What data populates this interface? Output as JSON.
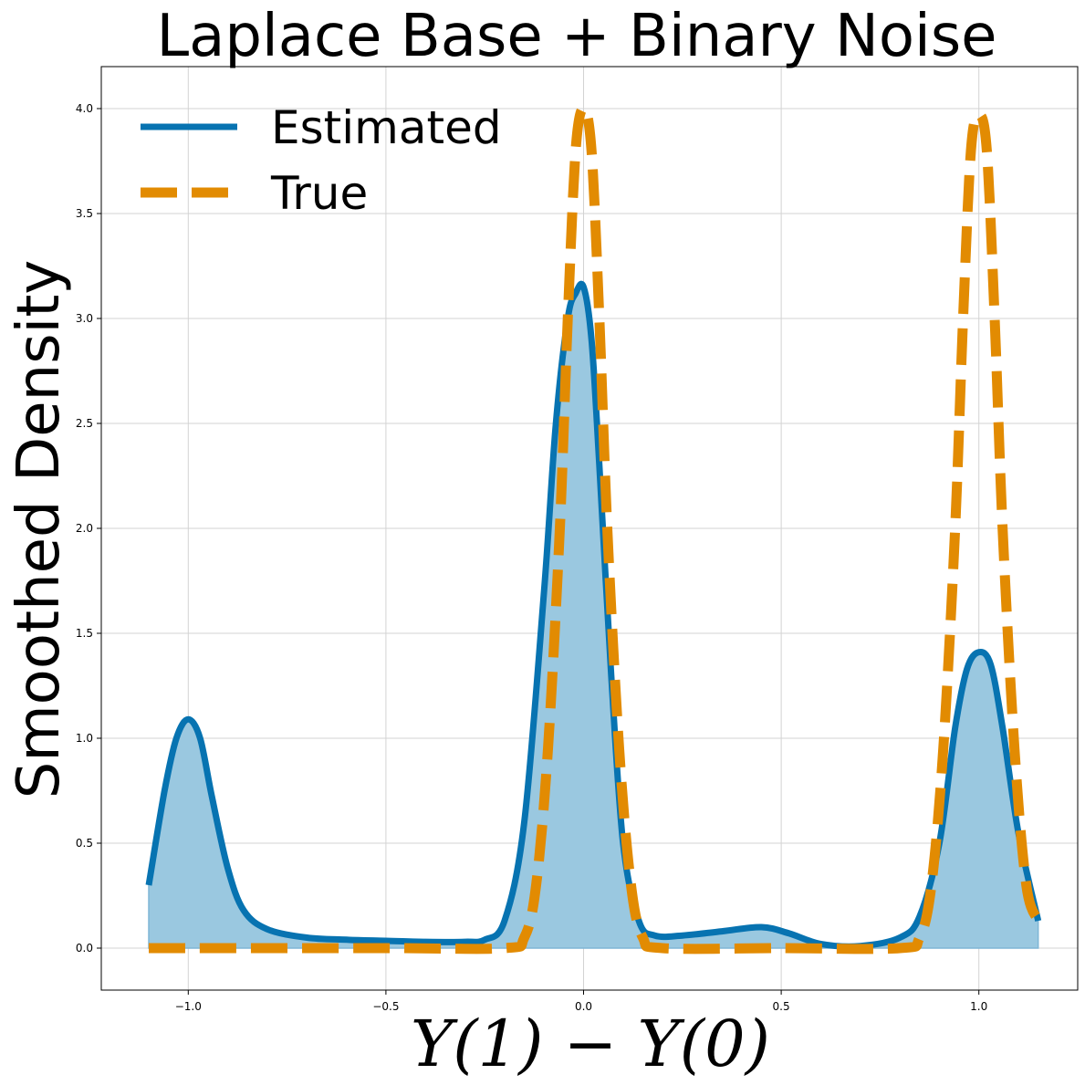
{
  "chart_data": {
    "type": "line",
    "title": "Laplace Base + Binary Noise",
    "xlabel": "Y(1) − Y(0)",
    "ylabel": "Smoothed Density",
    "xlim": [
      -1.22,
      1.25
    ],
    "ylim": [
      -0.2,
      4.2
    ],
    "grid": true,
    "legend_position": "top-left",
    "x_ticks": [
      -1.0,
      -0.5,
      0.0,
      0.5,
      1.0
    ],
    "x_tick_labels": [
      "−1.0",
      "−0.5",
      "0.0",
      "0.5",
      "1.0"
    ],
    "y_ticks": [
      0.0,
      0.5,
      1.0,
      1.5,
      2.0,
      2.5,
      3.0,
      3.5,
      4.0
    ],
    "y_tick_labels": [
      "0.0",
      "0.5",
      "1.0",
      "1.5",
      "2.0",
      "2.5",
      "3.0",
      "3.5",
      "4.0"
    ],
    "series": [
      {
        "name": "Estimated",
        "style": "solid",
        "color": "#0773b1",
        "fill_color": "#9ac8e0",
        "x": [
          -1.1,
          -1.06,
          -1.03,
          -1.0,
          -0.97,
          -0.94,
          -0.9,
          -0.86,
          -0.8,
          -0.7,
          -0.6,
          -0.5,
          -0.4,
          -0.3,
          -0.25,
          -0.2,
          -0.15,
          -0.1,
          -0.07,
          -0.04,
          -0.02,
          0.0,
          0.02,
          0.04,
          0.07,
          0.1,
          0.14,
          0.18,
          0.25,
          0.35,
          0.45,
          0.52,
          0.6,
          0.7,
          0.8,
          0.85,
          0.9,
          0.94,
          0.97,
          1.0,
          1.03,
          1.06,
          1.1,
          1.15
        ],
        "y": [
          0.3,
          0.75,
          1.0,
          1.09,
          1.0,
          0.72,
          0.38,
          0.18,
          0.09,
          0.05,
          0.04,
          0.035,
          0.03,
          0.03,
          0.04,
          0.13,
          0.6,
          1.7,
          2.5,
          3.0,
          3.12,
          3.15,
          2.9,
          2.3,
          1.3,
          0.5,
          0.13,
          0.06,
          0.06,
          0.08,
          0.1,
          0.07,
          0.02,
          0.01,
          0.05,
          0.15,
          0.5,
          1.05,
          1.33,
          1.41,
          1.35,
          1.05,
          0.55,
          0.13
        ]
      },
      {
        "name": "True",
        "style": "dashed",
        "color": "#e28b02",
        "x": [
          -1.1,
          -0.5,
          -0.2,
          -0.15,
          -0.12,
          -0.09,
          -0.06,
          -0.04,
          -0.02,
          0.0,
          0.02,
          0.04,
          0.06,
          0.09,
          0.12,
          0.15,
          0.2,
          0.5,
          0.8,
          0.85,
          0.88,
          0.91,
          0.94,
          0.96,
          0.98,
          1.0,
          1.02,
          1.04,
          1.06,
          1.09,
          1.12,
          1.15
        ],
        "y": [
          0.0,
          0.0,
          0.0,
          0.05,
          0.3,
          0.95,
          2.0,
          3.0,
          3.8,
          4.0,
          3.8,
          3.0,
          2.0,
          0.95,
          0.3,
          0.05,
          0.0,
          0.0,
          0.0,
          0.05,
          0.3,
          0.95,
          2.0,
          3.0,
          3.8,
          3.97,
          3.8,
          3.0,
          2.0,
          0.95,
          0.3,
          0.13
        ]
      }
    ]
  },
  "legend": {
    "items": [
      {
        "label": "Estimated"
      },
      {
        "label": "True"
      }
    ]
  }
}
